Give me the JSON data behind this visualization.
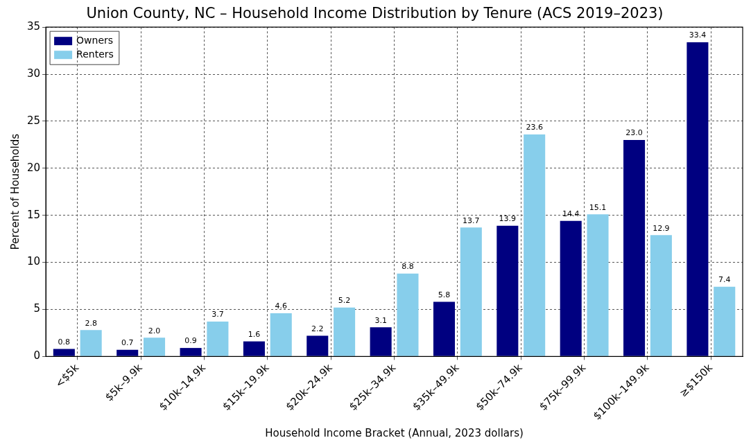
{
  "chart_data": {
    "type": "bar",
    "title": "Union County, NC – Household Income Distribution by Tenure (ACS 2019–2023)",
    "xlabel": "Household Income Bracket (Annual, 2023 dollars)",
    "ylabel": "Percent of Households",
    "categories": [
      "<$5k",
      "$5k–9.9k",
      "$10k–14.9k",
      "$15k–19.9k",
      "$20k–24.9k",
      "$25k–34.9k",
      "$35k–49.9k",
      "$50k–74.9k",
      "$75k–99.9k",
      "$100k–149.9k",
      "≥$150k"
    ],
    "series": [
      {
        "name": "Owners",
        "color": "#000080",
        "values": [
          0.8,
          0.7,
          0.9,
          1.6,
          2.2,
          3.1,
          5.8,
          13.9,
          14.4,
          23.0,
          33.4
        ],
        "value_labels": [
          "0.8",
          "0.7",
          "0.9",
          "1.6",
          "2.2",
          "3.1",
          "5.8",
          "13.9",
          "14.4",
          "23.0",
          "33.4"
        ]
      },
      {
        "name": "Renters",
        "color": "#87ceeb",
        "values": [
          2.8,
          2.0,
          3.7,
          4.6,
          5.2,
          8.8,
          13.7,
          23.6,
          15.1,
          12.9,
          7.4
        ],
        "value_labels": [
          "2.8",
          "2.0",
          "3.7",
          "4.6",
          "5.2",
          "8.8",
          "13.7",
          "23.6",
          "15.1",
          "12.9",
          "7.4"
        ]
      }
    ],
    "ylim": [
      0,
      35
    ],
    "yticks": [
      0,
      5,
      10,
      15,
      20,
      25,
      30,
      35
    ],
    "grid": true,
    "legend": "top left"
  }
}
